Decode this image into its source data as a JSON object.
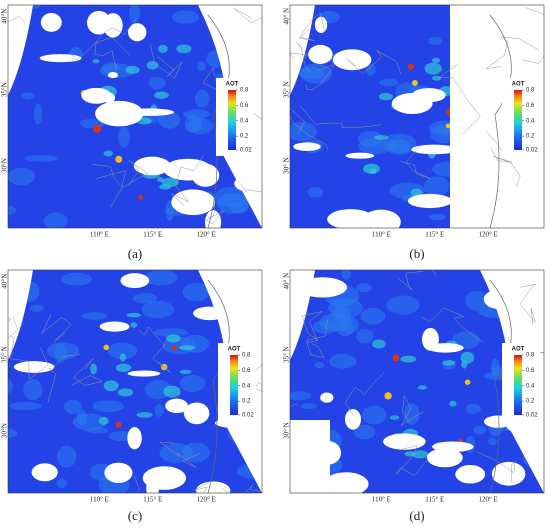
{
  "panels": [
    {
      "caption": "(a)",
      "lat_labels": [
        "40°N",
        "35°N",
        "30°N"
      ],
      "lon_labels": [
        "110° E",
        "115° E",
        "120° E"
      ],
      "colorbar": {
        "title": "AOT",
        "clim": [
          0.02,
          0.8
        ],
        "ticks": [
          0.8,
          0.6,
          0.4,
          0.2,
          0.02
        ]
      }
    },
    {
      "caption": "(b)",
      "lat_labels": [
        "40° N",
        "35° N",
        "30° N"
      ],
      "lon_labels": [
        "110° E",
        "115° E",
        "120° E"
      ],
      "colorbar": {
        "title": "AOT",
        "clim": [
          0.02,
          0.8
        ],
        "ticks": [
          0.8,
          0.6,
          0.4,
          0.2,
          0.02
        ]
      }
    },
    {
      "caption": "(c)",
      "lat_labels": [
        "40°N",
        "35° N",
        "30°N"
      ],
      "lon_labels": [
        "110° E",
        "115° E",
        "120° E"
      ],
      "colorbar": {
        "title": "AOT",
        "clim": [
          0.02,
          0.8
        ],
        "ticks": [
          0.8,
          0.6,
          0.4,
          0.2,
          0.02
        ]
      }
    },
    {
      "caption": "(d)",
      "lat_labels": [
        "40° N",
        "35° N",
        "30° N"
      ],
      "lon_labels": [
        "110° E",
        "115° E",
        "120° E"
      ],
      "colorbar": {
        "title": "AOT",
        "clim": [
          0.02,
          0.8
        ],
        "ticks": [
          0.8,
          0.6,
          0.4,
          0.2,
          0.02
        ]
      }
    }
  ]
}
